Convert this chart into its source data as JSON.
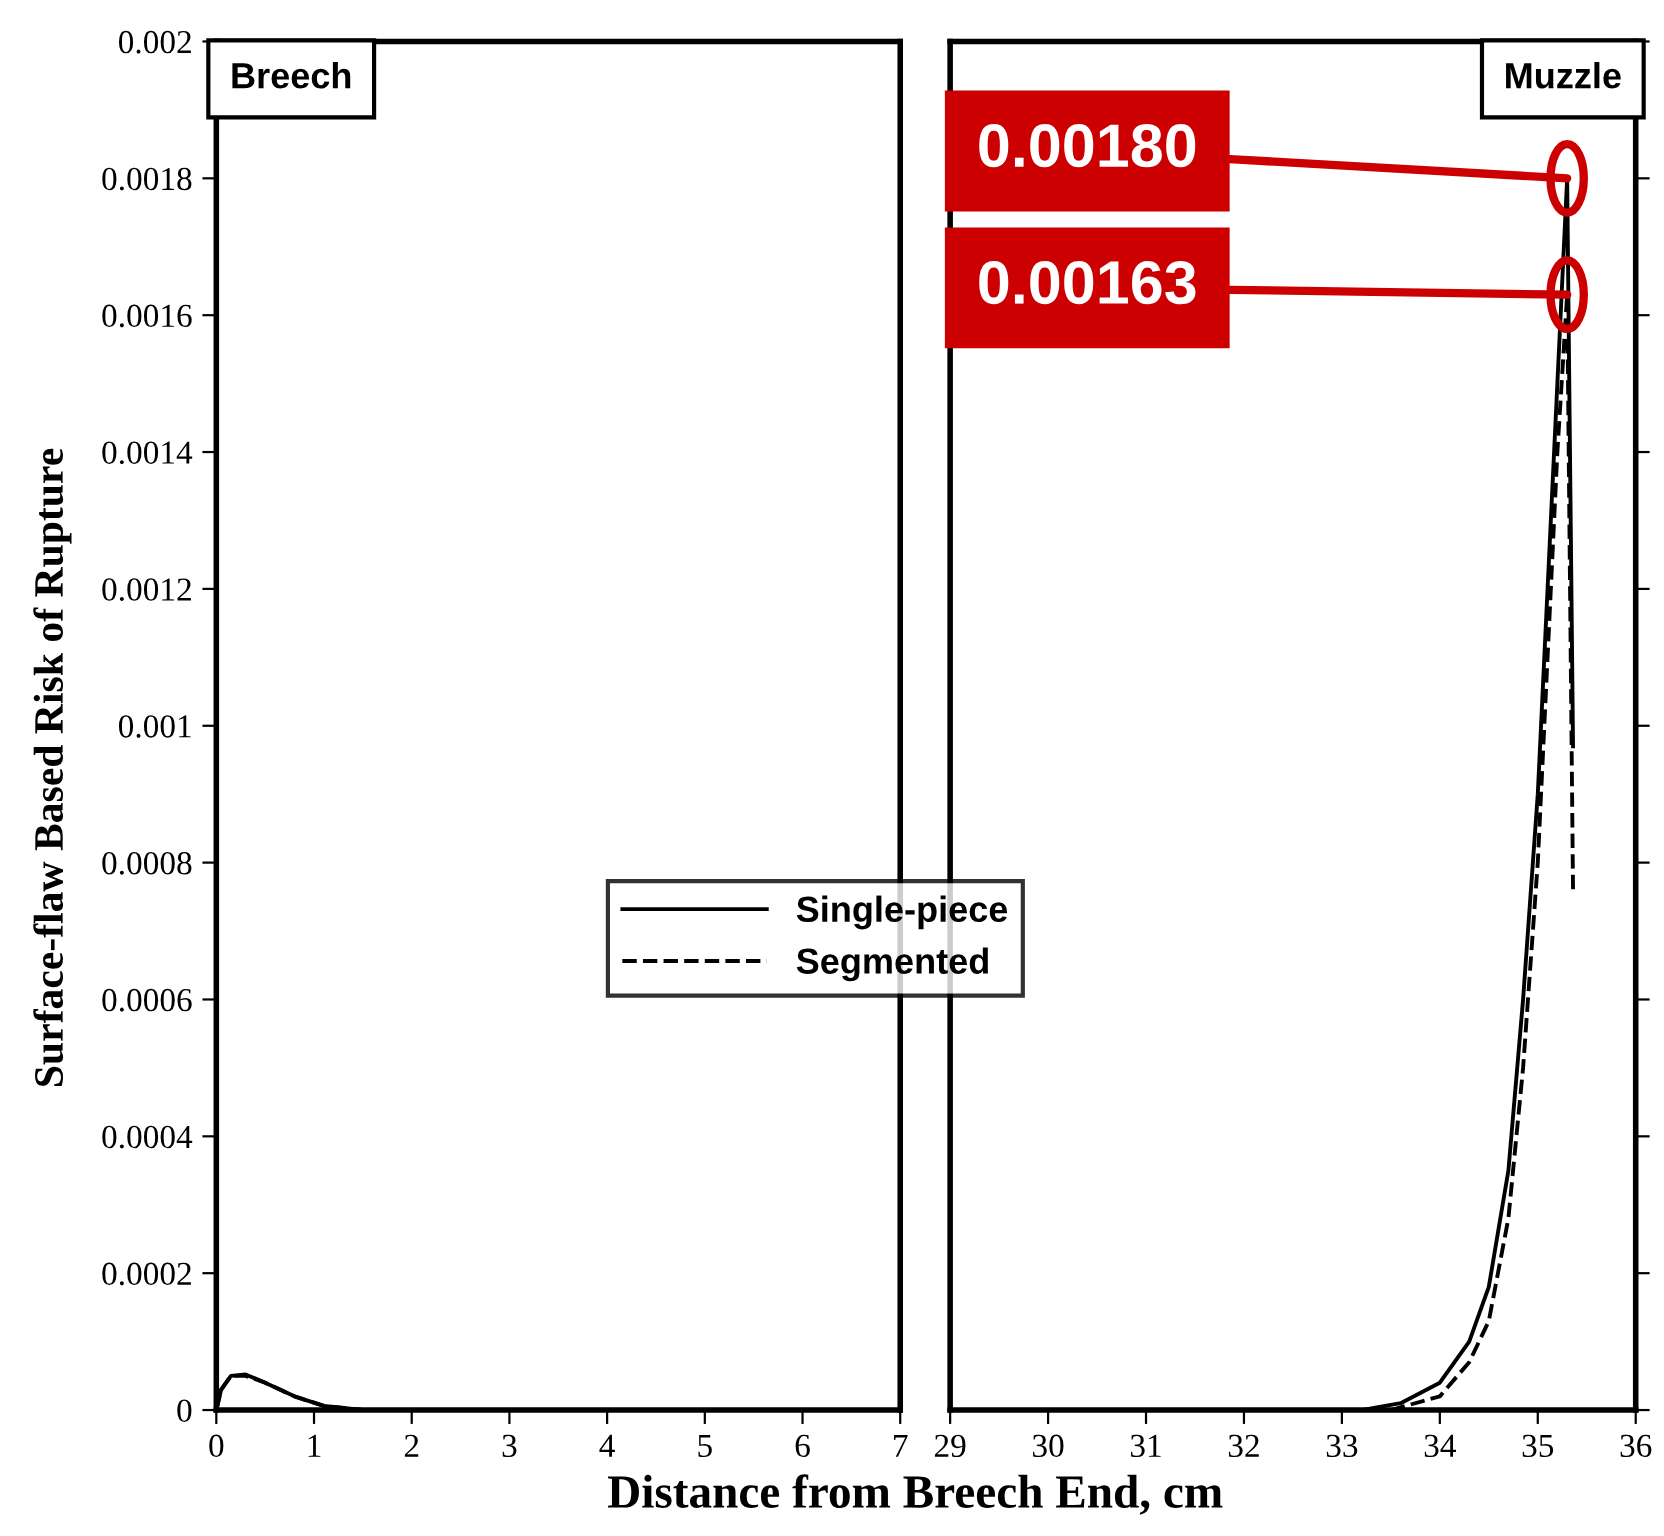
{
  "chart_data": [
    {
      "type": "line",
      "xlabel": "Distance from Breech End, cm",
      "ylabel": "Surface-flaw Based Risk of Rupture",
      "annotations": [
        "Breech"
      ],
      "xlim": [
        0,
        7
      ],
      "xticks": [
        0,
        1,
        2,
        3,
        4,
        5,
        6,
        7
      ],
      "ylim": [
        0,
        0.002
      ],
      "yticks": [
        0,
        0.0002,
        0.0004,
        0.0006,
        0.0008,
        0.001,
        0.0012,
        0.0014,
        0.0016,
        0.0018,
        0.002
      ],
      "legend": "bottom",
      "grid": false,
      "series": [
        {
          "name": "Single-piece",
          "color": "#000000",
          "line_style": "solid",
          "x": [
            0,
            0.05,
            0.15,
            0.3,
            0.5,
            0.8,
            1.1,
            1.5
          ],
          "values": [
            0,
            3e-05,
            5e-05,
            5.2e-05,
            4e-05,
            2e-05,
            6e-06,
            0
          ]
        },
        {
          "name": "Segmented",
          "color": "#000000",
          "line_style": "dashed",
          "x": [
            0,
            0.05,
            0.15,
            0.3,
            0.5,
            0.8,
            1.1,
            1.5
          ],
          "values": [
            0,
            3e-05,
            5e-05,
            5e-05,
            4e-05,
            2e-05,
            6e-06,
            0
          ]
        }
      ]
    },
    {
      "type": "line",
      "annotations": [
        "Muzzle",
        {
          "text": "0.00180",
          "x": 35.3,
          "y": 0.0018
        },
        {
          "text": "0.00163",
          "x": 35.3,
          "y": 0.00163
        }
      ],
      "xlim": [
        29,
        36
      ],
      "xticks": [
        29,
        30,
        31,
        32,
        33,
        34,
        35,
        36
      ],
      "ylim": [
        0,
        0.002
      ],
      "yticks": [
        0,
        0.0002,
        0.0004,
        0.0006,
        0.0008,
        0.001,
        0.0012,
        0.0014,
        0.0016,
        0.0018,
        0.002
      ],
      "tick_labels": "x",
      "grid": false,
      "series": [
        {
          "color": "#000000",
          "line_style": "solid",
          "x": [
            33.2,
            33.6,
            34.0,
            34.3,
            34.5,
            34.7,
            34.85,
            35.0,
            35.1,
            35.2,
            35.3,
            35.36
          ],
          "values": [
            0,
            1e-05,
            4e-05,
            0.0001,
            0.00018,
            0.00035,
            0.0006,
            0.0009,
            0.0012,
            0.0015,
            0.0018,
            0.00097
          ]
        },
        {
          "color": "#000000",
          "line_style": "dashed",
          "x": [
            33.5,
            34.0,
            34.3,
            34.5,
            34.7,
            34.85,
            35.0,
            35.1,
            35.2,
            35.3,
            35.36
          ],
          "values": [
            0,
            2e-05,
            7e-05,
            0.00013,
            0.00028,
            0.0005,
            0.0008,
            0.0011,
            0.0014,
            0.00163,
            0.00076
          ]
        }
      ]
    }
  ]
}
